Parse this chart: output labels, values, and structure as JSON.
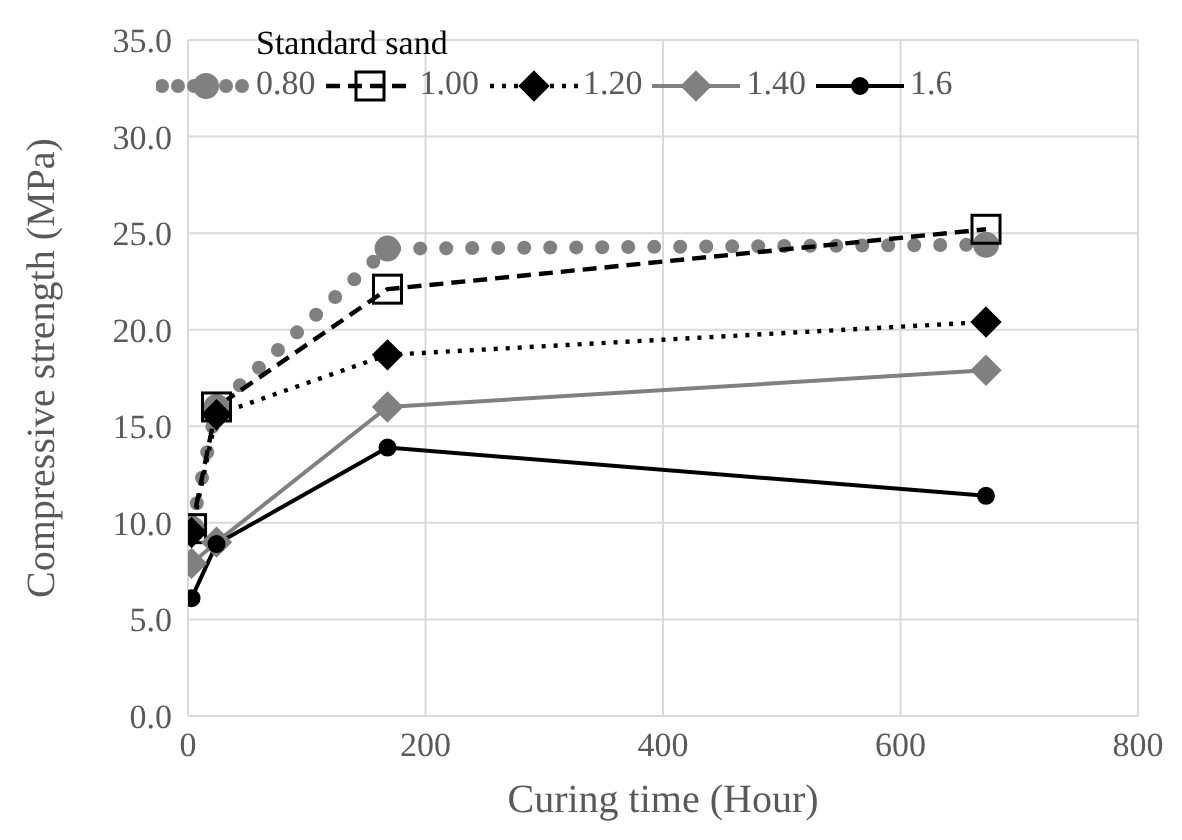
{
  "chart_data": {
    "type": "line",
    "xlabel": "Curing time (Hour)",
    "ylabel": "Compressive strength (MPa)",
    "legend_title": "Standard sand",
    "legend": "top",
    "grid": true,
    "xlim": [
      0,
      800
    ],
    "xticks": [
      0,
      200,
      400,
      600,
      800
    ],
    "ylim": [
      0,
      35
    ],
    "yticks": [
      {
        "value": 0,
        "label": "0.0"
      },
      {
        "value": 5,
        "label": "5.0"
      },
      {
        "value": 10,
        "label": "10.0"
      },
      {
        "value": 15,
        "label": "15.0"
      },
      {
        "value": 20,
        "label": "20.0"
      },
      {
        "value": 25,
        "label": "25.0"
      },
      {
        "value": 30,
        "label": "30.0"
      },
      {
        "value": 35,
        "label": "35.0"
      }
    ],
    "x": [
      3,
      24,
      168,
      672
    ],
    "series": [
      {
        "name": "0.80",
        "color": "#808080",
        "marker": "circle",
        "line_style": "dotted",
        "values": [
          9.7,
          16.0,
          24.2,
          24.4
        ]
      },
      {
        "name": "1.00",
        "color": "#000000",
        "marker": "square",
        "line_style": "dashed",
        "values": [
          9.7,
          16.0,
          22.1,
          25.2
        ]
      },
      {
        "name": "1.20",
        "color": "#000000",
        "marker": "diamond",
        "line_style": "dotted",
        "values": [
          9.5,
          15.6,
          18.7,
          20.4
        ]
      },
      {
        "name": "1.40",
        "color": "#808080",
        "marker": "diamond",
        "line_style": "solid",
        "values": [
          7.9,
          9.0,
          16.0,
          17.9
        ]
      },
      {
        "name": "1.6",
        "color": "#000000",
        "marker": "circle",
        "line_style": "solid",
        "values": [
          6.1,
          8.9,
          13.9,
          11.4
        ]
      }
    ]
  }
}
